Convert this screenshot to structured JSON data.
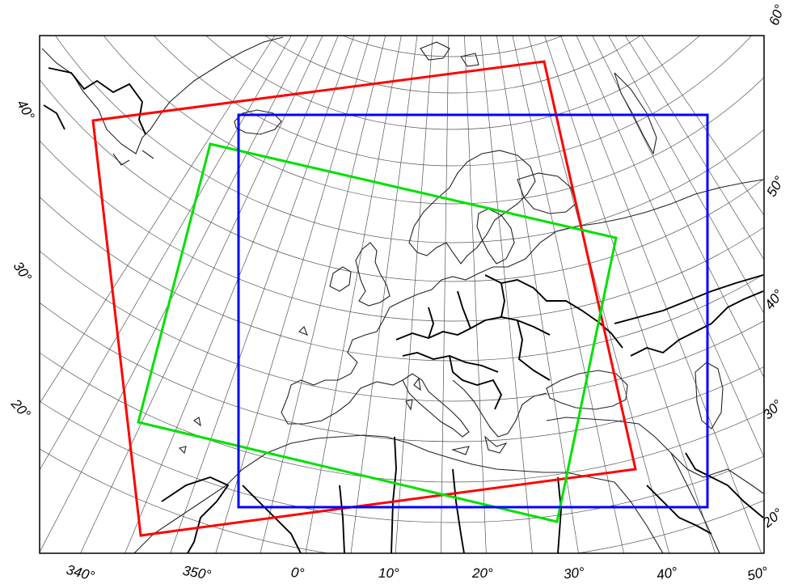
{
  "map": {
    "bottom_labels": [
      "340°",
      "350°",
      "0°",
      "10°",
      "20°",
      "30°",
      "40°",
      "50°"
    ],
    "left_labels": [
      "40°",
      "30°",
      "20°"
    ],
    "right_labels": [
      "60°",
      "50°",
      "40°",
      "30°",
      "20°"
    ],
    "domains": [
      {
        "name": "red-domain",
        "color": "#ff0000"
      },
      {
        "name": "green-domain",
        "color": "#00e000"
      },
      {
        "name": "blue-domain",
        "color": "#0000ff"
      }
    ]
  }
}
